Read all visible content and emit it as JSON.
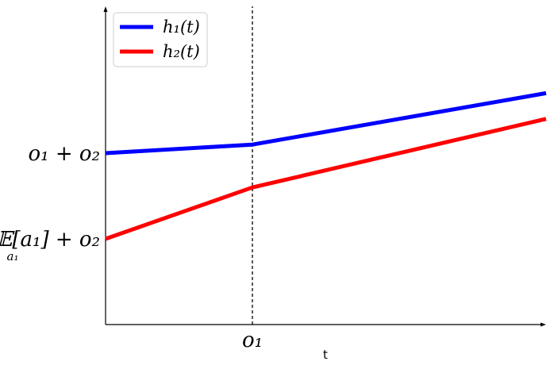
{
  "chart_data": {
    "type": "line",
    "xlabel": "t",
    "ylabel": "",
    "xlim": [
      0,
      3
    ],
    "ylim": [
      0,
      3
    ],
    "x_ticks": [
      {
        "value": 1,
        "label": "o₁"
      }
    ],
    "y_ticks": [
      {
        "value": 1,
        "label_main": "𝔼[a₁] + o₂",
        "label_sub": "a₁"
      },
      {
        "value": 2,
        "label_main": "o₁ + o₂"
      }
    ],
    "vline": {
      "x": 1,
      "style": "dashed",
      "color": "#000000"
    },
    "series": [
      {
        "name": "h₁(t)",
        "color": "#0000ff",
        "x": [
          0,
          1,
          3
        ],
        "y": [
          2,
          2.1,
          2.7
        ]
      },
      {
        "name": "h₂(t)",
        "color": "#ff0000",
        "x": [
          0,
          1,
          3
        ],
        "y": [
          1,
          1.6,
          2.4
        ]
      }
    ],
    "legend": "top-left",
    "grid": false
  }
}
